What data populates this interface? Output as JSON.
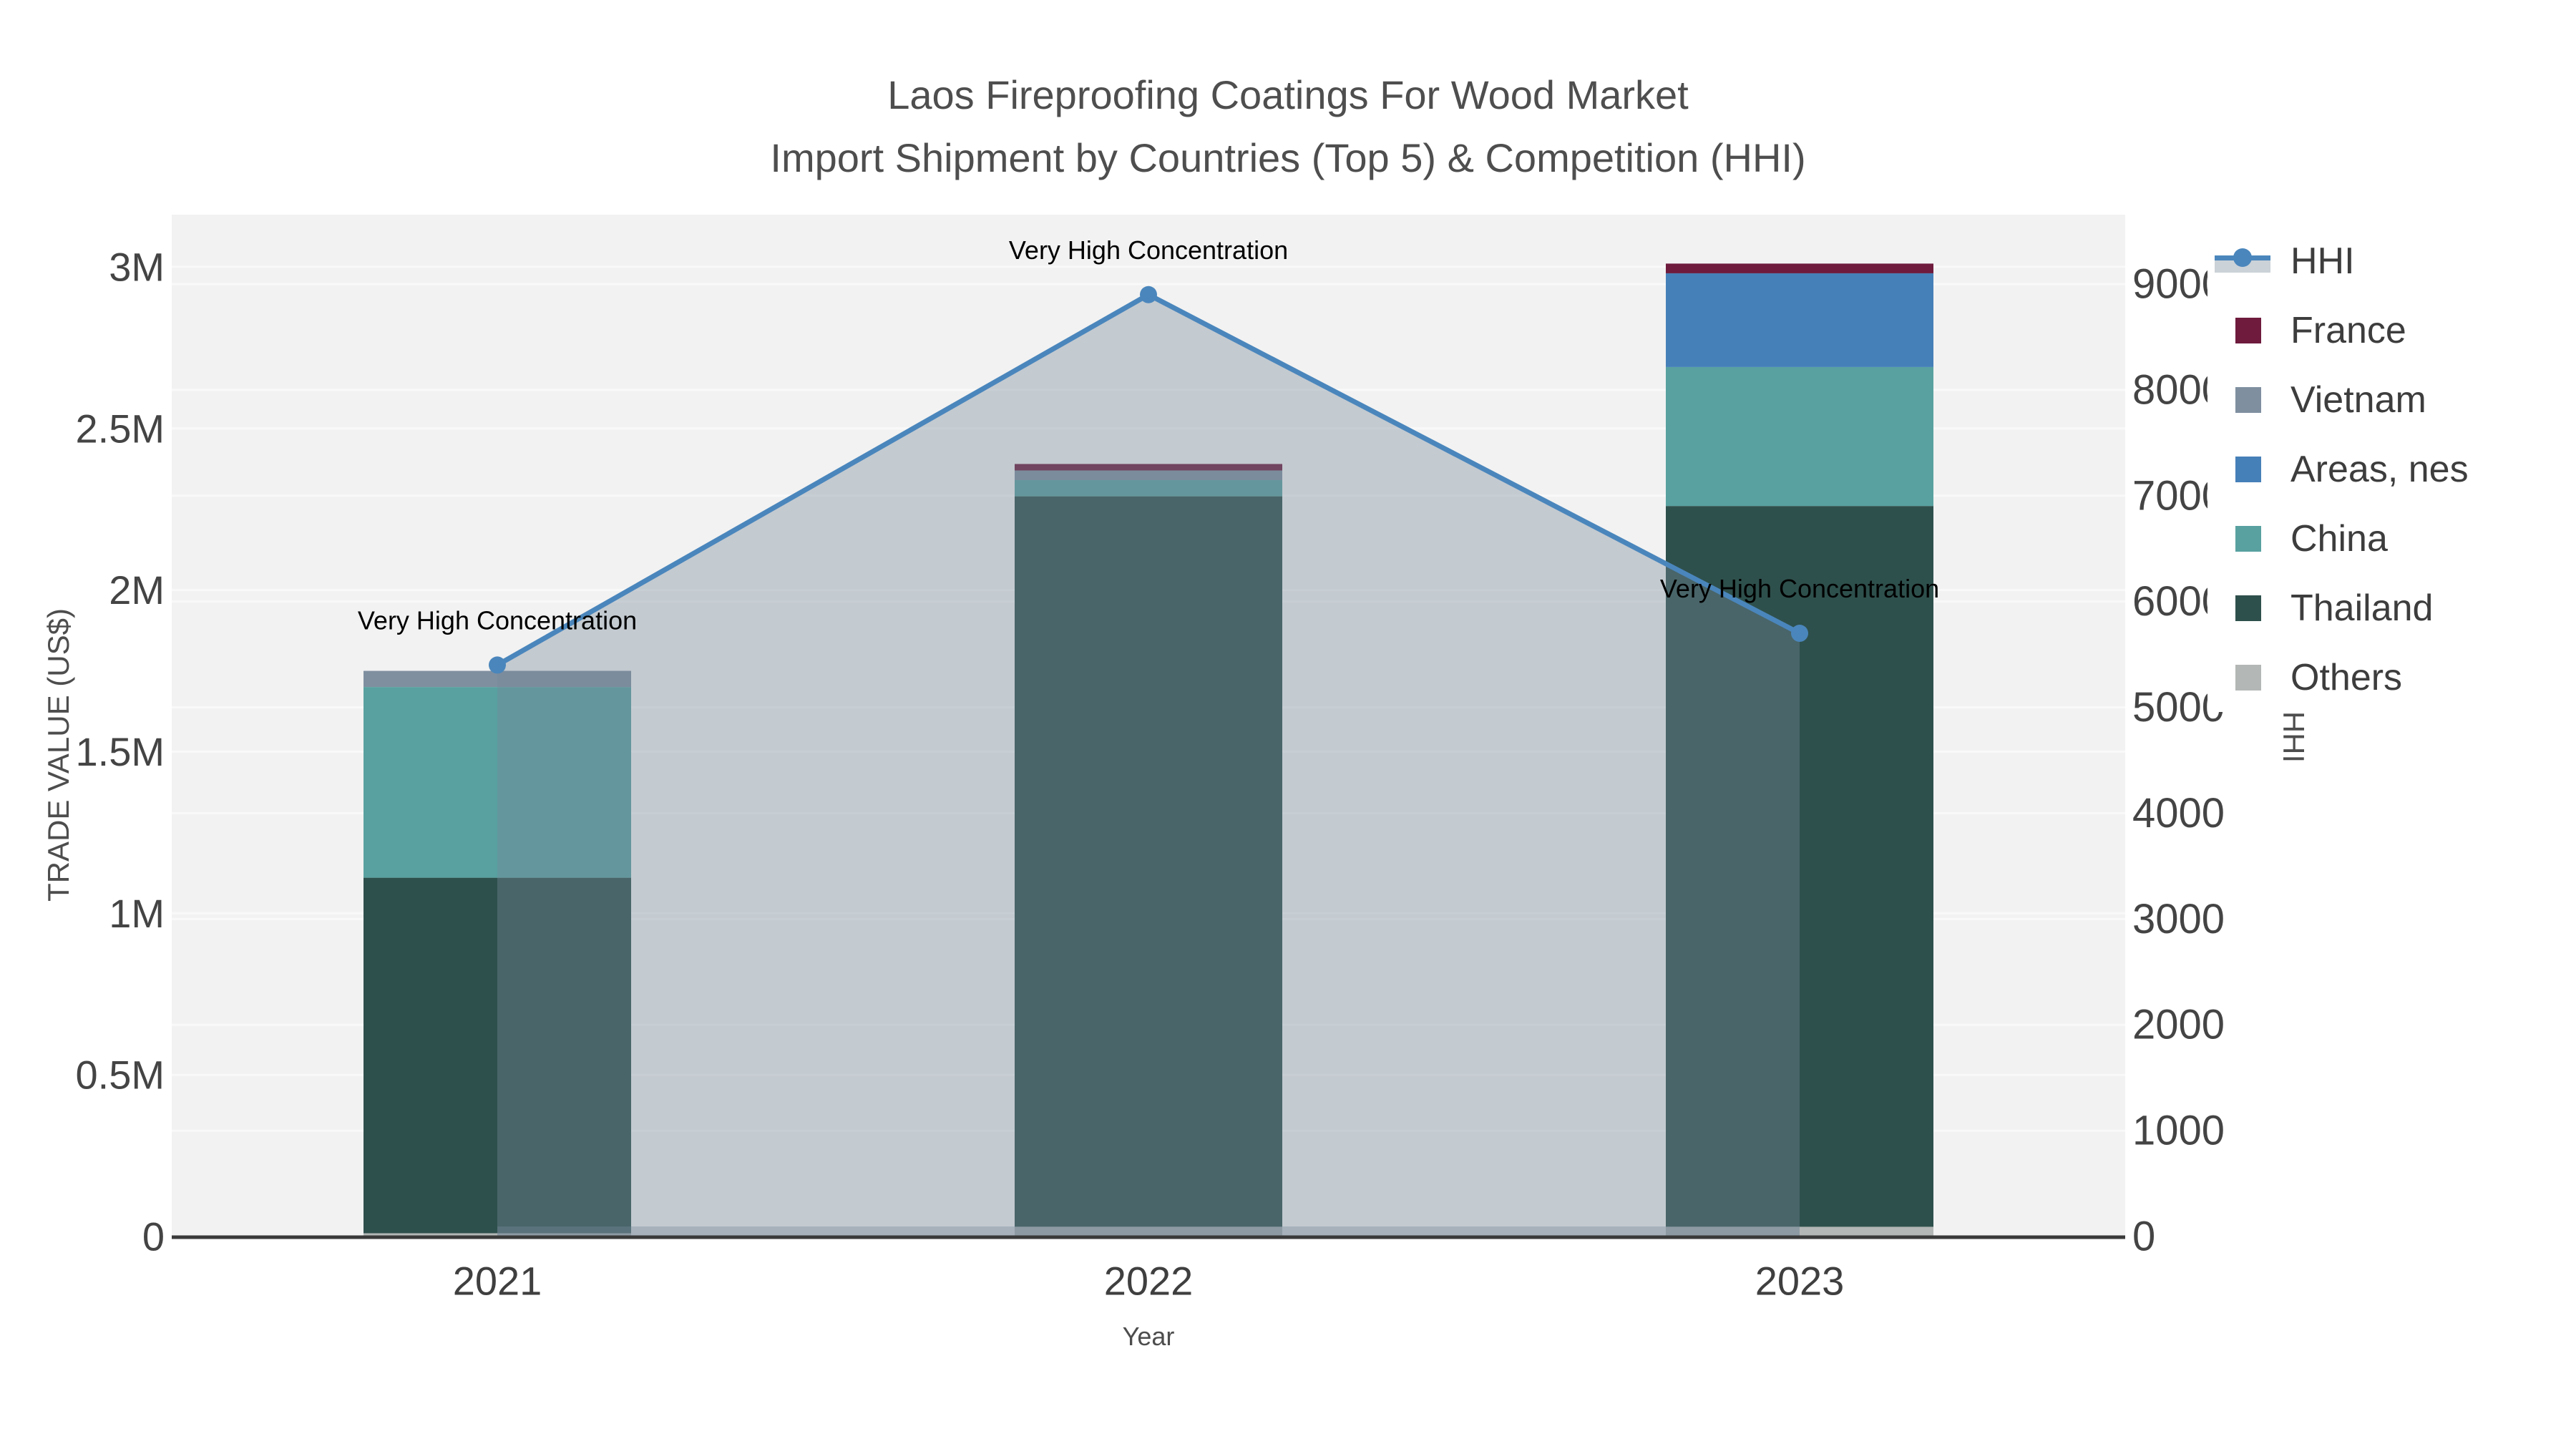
{
  "title": {
    "line1": "Laos Fireproofing Coatings For Wood Market",
    "line2": "Import Shipment by Countries (Top 5) & Competition (HHI)"
  },
  "chart_data": {
    "type": "combo: stacked bar (trade value) + line with area fill (HHI)",
    "categories": [
      "2021",
      "2022",
      "2023"
    ],
    "bar_series": [
      {
        "name": "Others",
        "color": "#b3b7b5",
        "values_musd": [
          0.01,
          0.03,
          0.03
        ]
      },
      {
        "name": "Thailand",
        "color": "#2e504c",
        "values_musd": [
          1.1,
          2.26,
          2.23
        ]
      },
      {
        "name": "China",
        "color": "#58a1a0",
        "values_musd": [
          0.59,
          0.05,
          0.43
        ]
      },
      {
        "name": "Areas, nes",
        "color": "#4680b8",
        "values_musd": [
          0.0,
          0.0,
          0.29
        ]
      },
      {
        "name": "Vietnam",
        "color": "#7f8fa0",
        "values_musd": [
          0.05,
          0.03,
          0.0
        ]
      },
      {
        "name": "France",
        "color": "#6e1b3d",
        "values_musd": [
          0.0,
          0.02,
          0.03
        ]
      }
    ],
    "bar_totals_musd": [
      1.75,
      2.39,
      3.01
    ],
    "line_series": {
      "name": "HHI",
      "color": "#4a86bc",
      "fill_color": "rgba(119,136,153,0.38)",
      "values": [
        5400,
        8900,
        5700
      ]
    },
    "point_annotations": [
      "Very High Concentration",
      "Very High Concentration",
      "Very High Concentration"
    ],
    "y_left_axis": {
      "title": "TRADE VALUE (US$)",
      "range_musd": [
        0,
        3
      ],
      "tick_labels": [
        "0",
        "0.5M",
        "1M",
        "1.5M",
        "2M",
        "2.5M",
        "3M"
      ]
    },
    "y_right_axis": {
      "title": "HHI",
      "range": [
        0,
        9000
      ],
      "tick_labels": [
        "0",
        "1000",
        "2000",
        "3000",
        "4000",
        "5000",
        "6000",
        "7000",
        "8000",
        "9000"
      ]
    },
    "x_axis": {
      "title": "Year"
    },
    "legend": {
      "items": [
        {
          "label": "HHI",
          "type": "line",
          "color": "#4a86bc",
          "band_color": "rgba(119,136,153,0.38)"
        },
        {
          "label": "France",
          "type": "square",
          "color": "#6e1b3d"
        },
        {
          "label": "Vietnam",
          "type": "square",
          "color": "#7f8fa0"
        },
        {
          "label": "Areas, nes",
          "type": "square",
          "color": "#4680b8"
        },
        {
          "label": "China",
          "type": "square",
          "color": "#58a1a0"
        },
        {
          "label": "Thailand",
          "type": "square",
          "color": "#2e504c"
        },
        {
          "label": "Others",
          "type": "square",
          "color": "#b3b7b5"
        }
      ]
    },
    "layout_hints": {
      "plot_bg": "#f2f2f2",
      "grid_color": "#f9f9f9",
      "axis_line_color": "#3a3a3a",
      "tick_color": "#444444",
      "annotation_color": "#000000",
      "legend_position": "top-right, overlapping right tick labels"
    }
  }
}
